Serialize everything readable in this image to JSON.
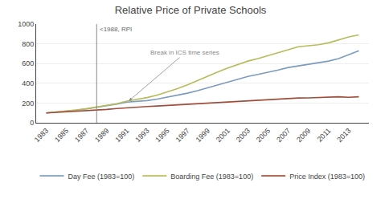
{
  "chart_data": {
    "type": "line",
    "title": "Relative Price of Private Schools",
    "x": [
      1983,
      1984,
      1985,
      1986,
      1987,
      1988,
      1989,
      1990,
      1991,
      1992,
      1993,
      1994,
      1995,
      1996,
      1997,
      1998,
      1999,
      2000,
      2001,
      2002,
      2003,
      2004,
      2005,
      2006,
      2007,
      2008,
      2009,
      2010,
      2011,
      2012,
      2013,
      2014
    ],
    "series": [
      {
        "name": "Day Fee (1983=100)",
        "color": "#7b9bbf",
        "values": [
          100,
          108,
          117,
          128,
          140,
          155,
          172,
          190,
          210,
          215,
          225,
          240,
          258,
          278,
          300,
          325,
          355,
          385,
          415,
          445,
          470,
          490,
          510,
          535,
          560,
          575,
          590,
          605,
          625,
          650,
          690,
          730
        ]
      },
      {
        "name": "Boarding Fee (1983=100)",
        "color": "#b8bb5a",
        "values": [
          100,
          108,
          118,
          130,
          143,
          158,
          174,
          193,
          220,
          235,
          255,
          280,
          310,
          345,
          385,
          430,
          475,
          515,
          555,
          590,
          625,
          650,
          680,
          710,
          740,
          770,
          780,
          790,
          810,
          840,
          870,
          890
        ]
      },
      {
        "name": "Price Index (1983=100)",
        "color": "#9e4e3a",
        "values": [
          100,
          105,
          111,
          117,
          122,
          128,
          135,
          144,
          153,
          160,
          165,
          170,
          176,
          182,
          188,
          194,
          200,
          206,
          212,
          218,
          223,
          228,
          234,
          240,
          246,
          251,
          252,
          254,
          258,
          263,
          258,
          263
        ]
      }
    ],
    "xlim": [
      1982,
      2015
    ],
    "xticks": [
      1983,
      1985,
      1987,
      1989,
      1991,
      1993,
      1995,
      1997,
      1999,
      2001,
      2003,
      2005,
      2007,
      2009,
      2011,
      2013
    ],
    "ylim": [
      0,
      1000
    ],
    "yticks": [
      0,
      200,
      400,
      600,
      800,
      1000
    ],
    "grid": true,
    "legend": "bottom",
    "vlines": [
      {
        "x": 1988,
        "label": "<1988, RPI",
        "color": "#888888"
      }
    ],
    "annotations": [
      {
        "text": "Break in ICS time series",
        "x": 1991.2,
        "y": 222
      }
    ]
  }
}
